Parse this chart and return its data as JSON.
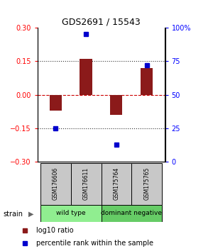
{
  "title": "GDS2691 / 15543",
  "samples": [
    "GSM176606",
    "GSM176611",
    "GSM175764",
    "GSM175765"
  ],
  "log10_ratio": [
    -0.07,
    0.16,
    -0.09,
    0.12
  ],
  "percentile_rank": [
    25,
    95,
    13,
    72
  ],
  "groups": [
    {
      "label": "wild type",
      "samples": [
        0,
        1
      ],
      "color": "#90EE90"
    },
    {
      "label": "dominant negative",
      "samples": [
        2,
        3
      ],
      "color": "#66CC66"
    }
  ],
  "ylim_left": [
    -0.3,
    0.3
  ],
  "ylim_right": [
    0,
    100
  ],
  "yticks_left": [
    -0.3,
    -0.15,
    0,
    0.15,
    0.3
  ],
  "yticks_right": [
    0,
    25,
    50,
    75,
    100
  ],
  "ytick_labels_right": [
    "0",
    "25",
    "50",
    "75",
    "100%"
  ],
  "bar_color": "#8B1A1A",
  "dot_color": "#0000CD",
  "zero_line_color": "#CC0000",
  "dotted_line_color": "#333333",
  "bar_width": 0.4,
  "sample_box_color": "#C8C8C8",
  "fig_bg": "#ffffff"
}
